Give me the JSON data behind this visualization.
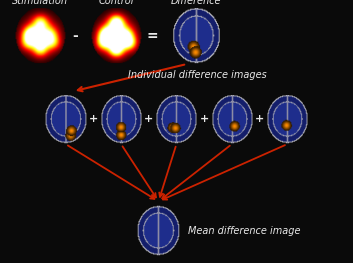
{
  "background_color": "#0a0a0a",
  "text_color": "#e8e8e8",
  "arrow_color": "#cc2200",
  "title_top": [
    "Stimulation",
    "Control",
    "Difference"
  ],
  "label_middle": "Individual difference images",
  "label_bottom": "Mean difference image",
  "operators_top": [
    "-",
    "="
  ],
  "operators_mid": [
    "+",
    "+",
    "+",
    "+"
  ],
  "font_size_labels": 7.0,
  "font_size_operators": 10
}
